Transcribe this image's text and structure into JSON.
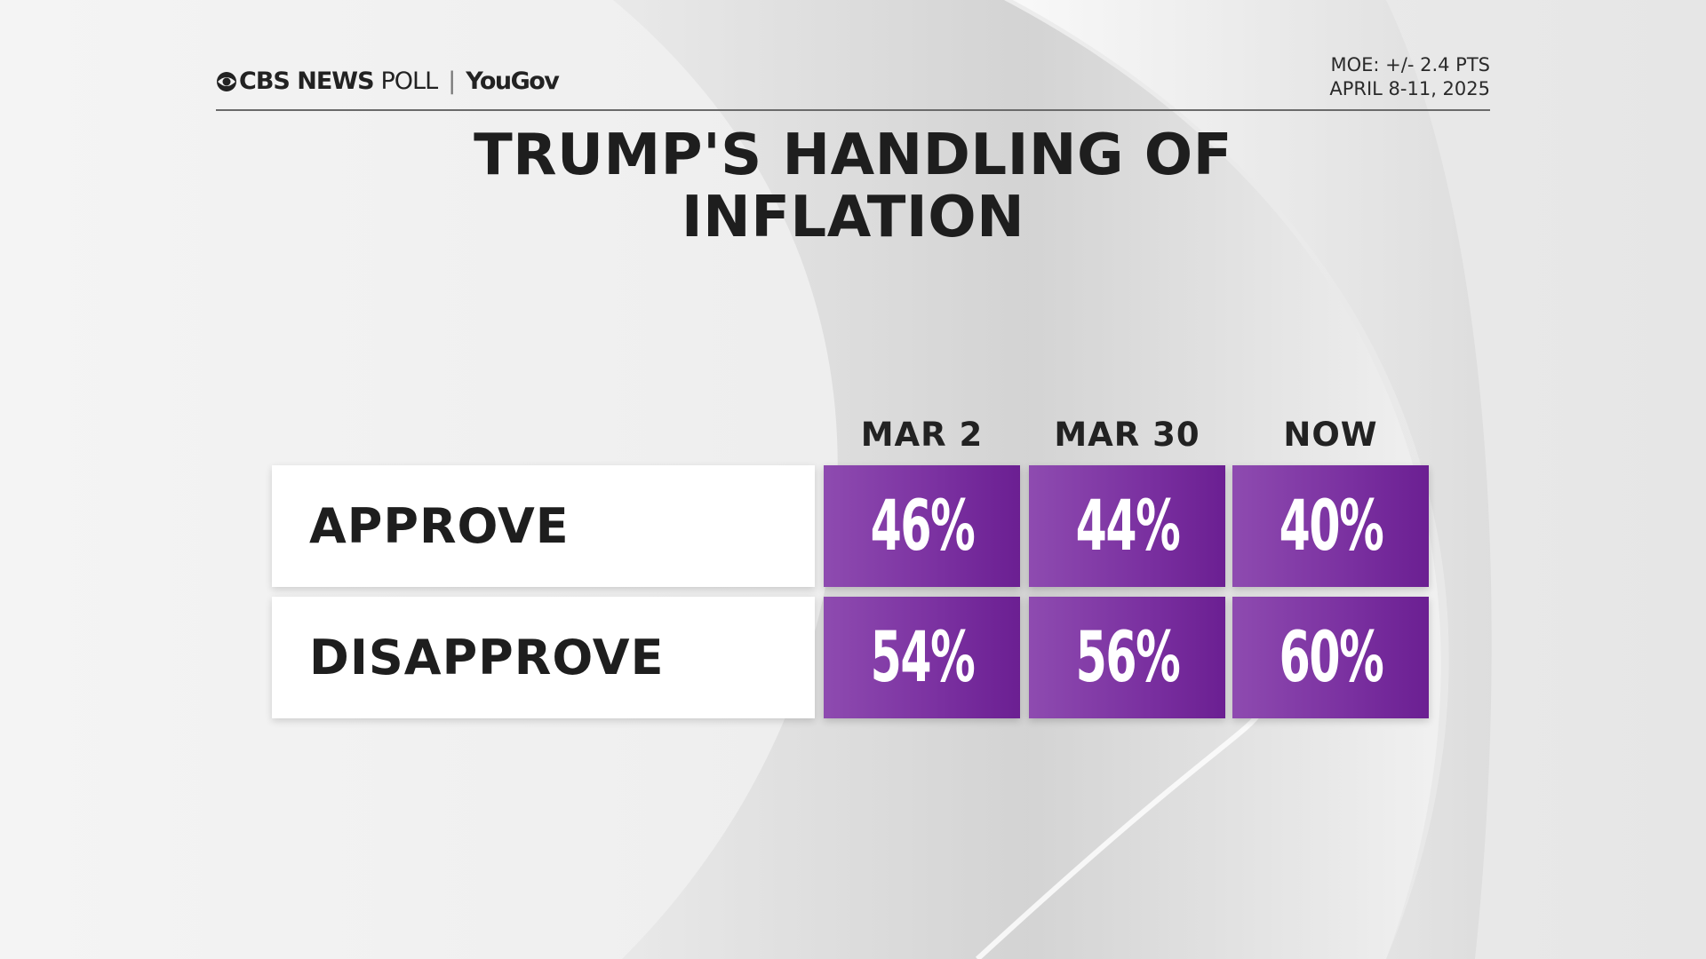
{
  "header": {
    "logo": {
      "brand": "CBS NEWS",
      "product": "POLL",
      "separator": "|",
      "partner": "YouGov"
    },
    "moe": "MOE: +/- 2.4 PTS",
    "dates": "APRIL 8-11, 2025"
  },
  "title_lines": [
    "TRUMP'S HANDLING OF",
    "INFLATION"
  ],
  "columns": [
    "MAR 2",
    "MAR 30",
    "NOW"
  ],
  "rows": [
    {
      "label": "APPROVE",
      "values": [
        "46%",
        "44%",
        "40%"
      ]
    },
    {
      "label": "DISAPPROVE",
      "values": [
        "54%",
        "56%",
        "60%"
      ]
    }
  ],
  "colors": {
    "cell_start": "#8e4bb0",
    "cell_end": "#6b1f92",
    "label_bg": "#ffffff"
  },
  "chart_data": {
    "type": "table",
    "title": "TRUMP'S HANDLING OF INFLATION",
    "categories": [
      "MAR 2",
      "MAR 30",
      "NOW"
    ],
    "series": [
      {
        "name": "APPROVE",
        "values": [
          46,
          44,
          40
        ]
      },
      {
        "name": "DISAPPROVE",
        "values": [
          54,
          56,
          60
        ]
      }
    ],
    "unit": "%"
  }
}
